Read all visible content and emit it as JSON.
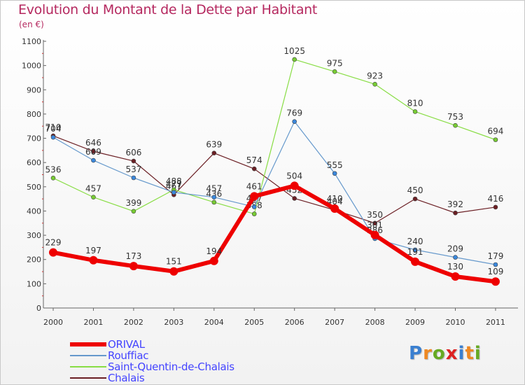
{
  "title": "Evolution du Montant de la Dette par Habitant",
  "subtitle": "(en €)",
  "chart_data": {
    "type": "line",
    "title": "Evolution du Montant de la Dette par Habitant",
    "subtitle": "(en €)",
    "xlabel": "",
    "ylabel": "",
    "x": [
      "2000",
      "2001",
      "2002",
      "2003",
      "2004",
      "2005",
      "2006",
      "2007",
      "2008",
      "2009",
      "2010",
      "2011"
    ],
    "ylim": [
      0,
      1100
    ],
    "yticks": [
      0,
      100,
      200,
      300,
      400,
      500,
      600,
      700,
      800,
      900,
      1000,
      1100
    ],
    "grid": false,
    "legend_position": "bottom-left",
    "series": [
      {
        "name": "Chalais",
        "color": "#6b1f24",
        "width": 1.2,
        "marker_r": 3,
        "values": [
          710,
          646,
          606,
          467,
          639,
          574,
          452,
          404,
          350,
          450,
          392,
          416
        ],
        "labels": [
          "710",
          "646",
          "606",
          "467",
          "639",
          "574",
          "452",
          "404",
          "350",
          "450",
          "392",
          "416"
        ]
      },
      {
        "name": "Saint-Quentin-de-Chalais",
        "color": "#88dd44",
        "marker_fill": "#77cc33",
        "width": 1.2,
        "marker_r": 3,
        "values": [
          536,
          457,
          399,
          488,
          436,
          388,
          1025,
          975,
          923,
          810,
          753,
          694
        ],
        "labels": [
          "536",
          "457",
          "399",
          "488",
          "436",
          "388",
          "1025",
          "975",
          "923",
          "810",
          "753",
          "694"
        ]
      },
      {
        "name": "Rouffiac",
        "color": "#6699cc",
        "marker_fill": "#3a88dd",
        "width": 1.2,
        "marker_r": 3,
        "values": [
          704,
          609,
          537,
          477,
          457,
          417,
          769,
          555,
          286,
          240,
          209,
          179
        ],
        "labels": [
          "704",
          "609",
          "537",
          "477",
          "457",
          "417",
          "769",
          "555",
          "286",
          "240",
          "209",
          "179"
        ]
      },
      {
        "name": "ORIVAL",
        "color": "#ee0000",
        "width": 6,
        "marker_r": 6,
        "values": [
          229,
          197,
          173,
          151,
          194,
          461,
          504,
          410,
          301,
          191,
          130,
          109
        ],
        "labels": [
          "229",
          "197",
          "173",
          "151",
          "194",
          "461",
          "504",
          "410",
          "301",
          "191",
          "130",
          "109"
        ]
      }
    ]
  },
  "legend": {
    "items": [
      {
        "label": "ORIVAL",
        "color": "#ee0000",
        "thickness": 6
      },
      {
        "label": "Rouffiac",
        "color": "#6699cc",
        "thickness": 2
      },
      {
        "label": "Saint-Quentin-de-Chalais",
        "color": "#88dd44",
        "thickness": 2
      },
      {
        "label": "Chalais",
        "color": "#6b1f24",
        "thickness": 2
      }
    ]
  },
  "logo": {
    "letters": [
      "P",
      "r",
      "o",
      "x",
      "i",
      "t",
      "i"
    ],
    "colors": [
      "#3a7fd0",
      "#ee8822",
      "#66aa22",
      "#dd2222",
      "#3a7fd0",
      "#ee8822",
      "#66aa22"
    ]
  }
}
